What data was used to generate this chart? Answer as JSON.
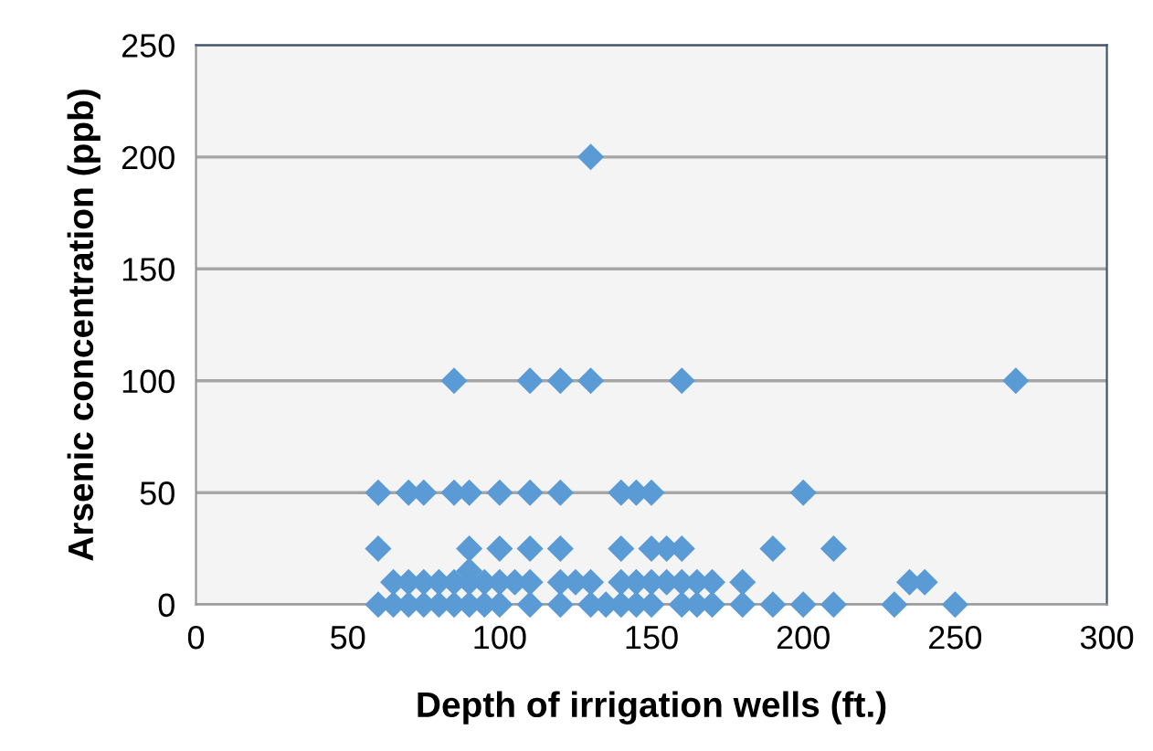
{
  "chart_data": {
    "type": "scatter",
    "xlabel": "Depth of irrigation wells (ft.)",
    "ylabel": "Arsenic concentration (ppb)",
    "xlim": [
      0,
      300
    ],
    "xticks": [
      0,
      50,
      100,
      150,
      200,
      250,
      300
    ],
    "ylim": [
      0,
      250
    ],
    "yticks": [
      0,
      50,
      100,
      150,
      200,
      250
    ],
    "grid": "y",
    "marker": "diamond",
    "series": [
      {
        "color": "#5b9bd5",
        "x": [
          130,
          85,
          110,
          120,
          130,
          160,
          270,
          60,
          70,
          75,
          85,
          90,
          100,
          110,
          120,
          140,
          145,
          150,
          200,
          60,
          90,
          100,
          110,
          120,
          140,
          150,
          155,
          160,
          190,
          210,
          90,
          65,
          70,
          75,
          80,
          85,
          90,
          95,
          100,
          105,
          110,
          120,
          125,
          130,
          140,
          145,
          150,
          155,
          160,
          165,
          170,
          180,
          235,
          240,
          60,
          65,
          70,
          75,
          80,
          85,
          90,
          95,
          100,
          110,
          120,
          130,
          135,
          140,
          145,
          150,
          160,
          165,
          170,
          180,
          190,
          200,
          210,
          230,
          250
        ],
        "values": [
          200,
          100,
          100,
          100,
          100,
          100,
          100,
          50,
          50,
          50,
          50,
          50,
          50,
          50,
          50,
          50,
          50,
          50,
          50,
          25,
          25,
          25,
          25,
          25,
          25,
          25,
          25,
          25,
          25,
          25,
          15,
          10,
          10,
          10,
          10,
          10,
          10,
          10,
          10,
          10,
          10,
          10,
          10,
          10,
          10,
          10,
          10,
          10,
          10,
          10,
          10,
          10,
          10,
          10,
          0,
          0,
          0,
          0,
          0,
          0,
          0,
          0,
          0,
          0,
          0,
          0,
          0,
          0,
          0,
          0,
          0,
          0,
          0,
          0,
          0,
          0,
          0,
          0,
          0
        ]
      }
    ]
  }
}
